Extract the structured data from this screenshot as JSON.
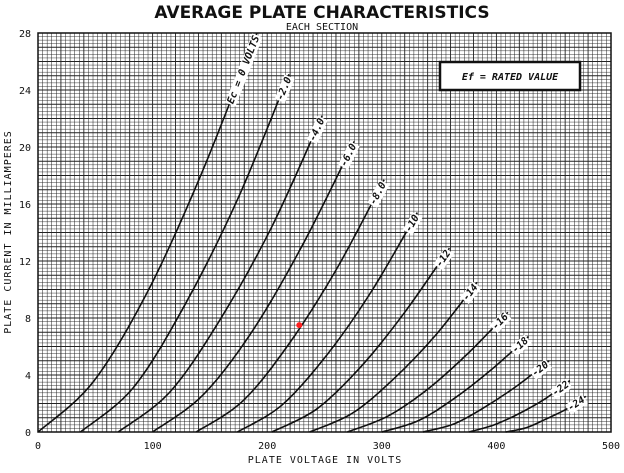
{
  "chart_data": {
    "type": "line",
    "title": "AVERAGE PLATE CHARACTERISTICS",
    "subtitle": "EACH SECTION",
    "xlabel": "PLATE VOLTAGE IN VOLTS",
    "ylabel": "PLATE CURRENT IN MILLIAMPERES",
    "xlim": [
      0,
      500
    ],
    "ylim": [
      0,
      28
    ],
    "xticks": [
      0,
      100,
      200,
      300,
      400,
      500
    ],
    "yticks": [
      0,
      4,
      8,
      12,
      16,
      20,
      24,
      28
    ],
    "grid": true,
    "grid_minor_x": 4,
    "grid_minor_y": 0.25,
    "annotation": "Ef = RATED VALUE",
    "annotation_placement": "top-right",
    "marker_color": "#ff2020",
    "marker_point": [
      228,
      7.5
    ],
    "series": [
      {
        "name": "Ec = 0 VOLTS",
        "points": [
          [
            0,
            0
          ],
          [
            48,
            3.5
          ],
          [
            96,
            9.9
          ],
          [
            143,
            18.2
          ],
          [
            191,
            28
          ]
        ]
      },
      {
        "name": "-2.0",
        "points": [
          [
            37,
            0
          ],
          [
            83,
            3.1
          ],
          [
            128,
            8.9
          ],
          [
            174,
            16.3
          ],
          [
            219,
            25.1
          ]
        ]
      },
      {
        "name": "-4.0",
        "points": [
          [
            70,
            0
          ],
          [
            115,
            2.8
          ],
          [
            159,
            7.9
          ],
          [
            204,
            14.4
          ],
          [
            248,
            22.2
          ]
        ]
      },
      {
        "name": "-6.0",
        "points": [
          [
            100,
            0
          ],
          [
            144,
            2.6
          ],
          [
            188,
            7.2
          ],
          [
            232,
            13.3
          ],
          [
            276,
            20.4
          ]
        ]
      },
      {
        "name": "-8.0",
        "points": [
          [
            138,
            0
          ],
          [
            179,
            2.2
          ],
          [
            220,
            6.3
          ],
          [
            261,
            11.5
          ],
          [
            302,
            17.7
          ]
        ]
      },
      {
        "name": "-10",
        "points": [
          [
            174,
            0
          ],
          [
            213,
            1.9
          ],
          [
            253,
            5.5
          ],
          [
            292,
            10.0
          ],
          [
            331,
            15.4
          ]
        ]
      },
      {
        "name": "-12",
        "points": [
          [
            204,
            0
          ],
          [
            243,
            1.6
          ],
          [
            282,
            4.6
          ],
          [
            320,
            8.4
          ],
          [
            359,
            12.9
          ]
        ]
      },
      {
        "name": "-14",
        "points": [
          [
            237,
            0
          ],
          [
            274,
            1.3
          ],
          [
            310,
            3.7
          ],
          [
            347,
            6.8
          ],
          [
            383,
            10.5
          ]
        ]
      },
      {
        "name": "-16",
        "points": [
          [
            270,
            0
          ],
          [
            305,
            1.1
          ],
          [
            340,
            3.0
          ],
          [
            375,
            5.5
          ],
          [
            410,
            8.4
          ]
        ]
      },
      {
        "name": "-18",
        "points": [
          [
            300,
            0
          ],
          [
            332,
            0.8
          ],
          [
            364,
            2.4
          ],
          [
            396,
            4.4
          ],
          [
            428,
            6.7
          ]
        ]
      },
      {
        "name": "-20",
        "points": [
          [
            336,
            0
          ],
          [
            364,
            0.6
          ],
          [
            391,
            1.8
          ],
          [
            419,
            3.3
          ],
          [
            446,
            5.0
          ]
        ]
      },
      {
        "name": "-22",
        "points": [
          [
            376,
            0
          ],
          [
            398,
            0.5
          ],
          [
            420,
            1.3
          ],
          [
            442,
            2.3
          ],
          [
            464,
            3.6
          ]
        ]
      },
      {
        "name": "-24",
        "points": [
          [
            408,
            0
          ],
          [
            426,
            0.3
          ],
          [
            443,
            0.9
          ],
          [
            461,
            1.6
          ],
          [
            478,
            2.5
          ]
        ]
      }
    ]
  }
}
